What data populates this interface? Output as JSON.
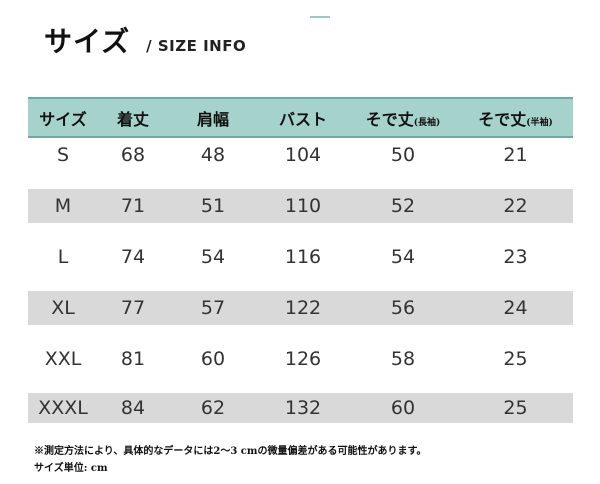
{
  "title": {
    "main": "サイズ",
    "sub": "/ SIZE INFO"
  },
  "table": {
    "headers": [
      {
        "label": "サイズ",
        "note": ""
      },
      {
        "label": "着丈",
        "note": ""
      },
      {
        "label": "肩幅",
        "note": ""
      },
      {
        "label": "バスト",
        "note": ""
      },
      {
        "label": "そで丈",
        "note": "(長袖)"
      },
      {
        "label": "そで丈",
        "note": "(半袖)"
      }
    ],
    "rows": [
      [
        "S",
        "68",
        "48",
        "104",
        "50",
        "21"
      ],
      [
        "M",
        "71",
        "51",
        "110",
        "52",
        "22"
      ],
      [
        "L",
        "74",
        "54",
        "116",
        "54",
        "23"
      ],
      [
        "XL",
        "77",
        "57",
        "122",
        "56",
        "24"
      ],
      [
        "XXL",
        "81",
        "60",
        "126",
        "58",
        "25"
      ],
      [
        "XXXL",
        "84",
        "62",
        "132",
        "60",
        "25"
      ]
    ]
  },
  "notes": {
    "measurement": "※測定方法により、具体的なデータには2～3 cmの微量偏差がある可能性があります。",
    "unit": "サイズ単位: cm"
  },
  "colors": {
    "header_background": "#a5d2cb",
    "header_border": "#6fa9a2",
    "shaded_row": "#d9d9d9"
  }
}
